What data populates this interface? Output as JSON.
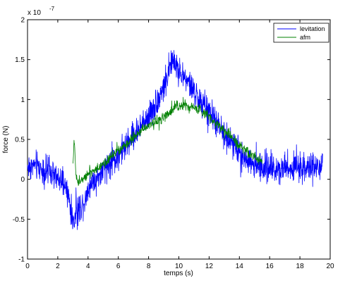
{
  "chart_data": {
    "type": "line",
    "title": "",
    "xlabel": "temps (s)",
    "ylabel": "force (N)",
    "y_exponent_label": "x 10",
    "y_exponent_power": "-7",
    "xlim": [
      0,
      20
    ],
    "ylim": [
      -1,
      2
    ],
    "xticks": [
      0,
      2,
      4,
      6,
      8,
      10,
      12,
      14,
      16,
      18,
      20
    ],
    "yticks": [
      -1,
      -0.5,
      0,
      0.5,
      1,
      1.5,
      2
    ],
    "ytick_labels": [
      "-1",
      "-0.5",
      "0",
      "0.5",
      "1",
      "1.5",
      "2"
    ],
    "grid": false,
    "legend_position": "top-right",
    "series": [
      {
        "name": "levitation",
        "color": "#0000ff",
        "x": [
          0,
          0.5,
          1,
          1.5,
          2,
          2.5,
          2.8,
          3.0,
          3.2,
          3.5,
          3.8,
          4.0,
          4.5,
          5.0,
          5.5,
          6.0,
          6.5,
          7.0,
          7.5,
          8.0,
          8.5,
          9.0,
          9.3,
          9.6,
          9.9,
          10.2,
          10.5,
          11.0,
          11.5,
          12.0,
          12.5,
          13.0,
          13.5,
          14.0,
          14.5,
          15.0,
          15.5,
          16.0,
          16.5,
          17.0,
          17.5,
          18.0,
          18.5,
          19.0,
          19.5
        ],
        "y": [
          0.15,
          0.18,
          0.12,
          0.08,
          0.0,
          -0.08,
          -0.3,
          -0.55,
          -0.42,
          -0.35,
          -0.25,
          -0.1,
          0.0,
          0.1,
          0.2,
          0.3,
          0.42,
          0.55,
          0.65,
          0.8,
          0.95,
          1.15,
          1.35,
          1.5,
          1.4,
          1.3,
          1.25,
          1.1,
          0.95,
          0.85,
          0.7,
          0.55,
          0.45,
          0.35,
          0.25,
          0.18,
          0.15,
          0.15,
          0.14,
          0.15,
          0.16,
          0.15,
          0.15,
          0.14,
          0.15
        ],
        "noise": 0.11
      },
      {
        "name": "afm",
        "color": "#008000",
        "x": [
          3.0,
          3.1,
          3.2,
          3.35,
          3.5,
          4.0,
          4.5,
          5.0,
          5.5,
          6.0,
          6.5,
          7.0,
          7.5,
          8.0,
          8.5,
          9.0,
          9.5,
          9.8,
          10.0,
          10.3,
          10.6,
          11.0,
          11.5,
          12.0,
          12.5,
          13.0,
          13.5,
          14.0,
          14.5,
          15.0,
          15.5
        ],
        "y": [
          0.2,
          0.5,
          0.05,
          -0.05,
          0.0,
          0.08,
          0.12,
          0.2,
          0.28,
          0.35,
          0.42,
          0.52,
          0.6,
          0.68,
          0.72,
          0.78,
          0.85,
          0.95,
          0.9,
          0.95,
          0.92,
          0.9,
          0.85,
          0.8,
          0.7,
          0.62,
          0.52,
          0.42,
          0.35,
          0.28,
          0.22
        ],
        "noise": 0.04
      }
    ]
  }
}
